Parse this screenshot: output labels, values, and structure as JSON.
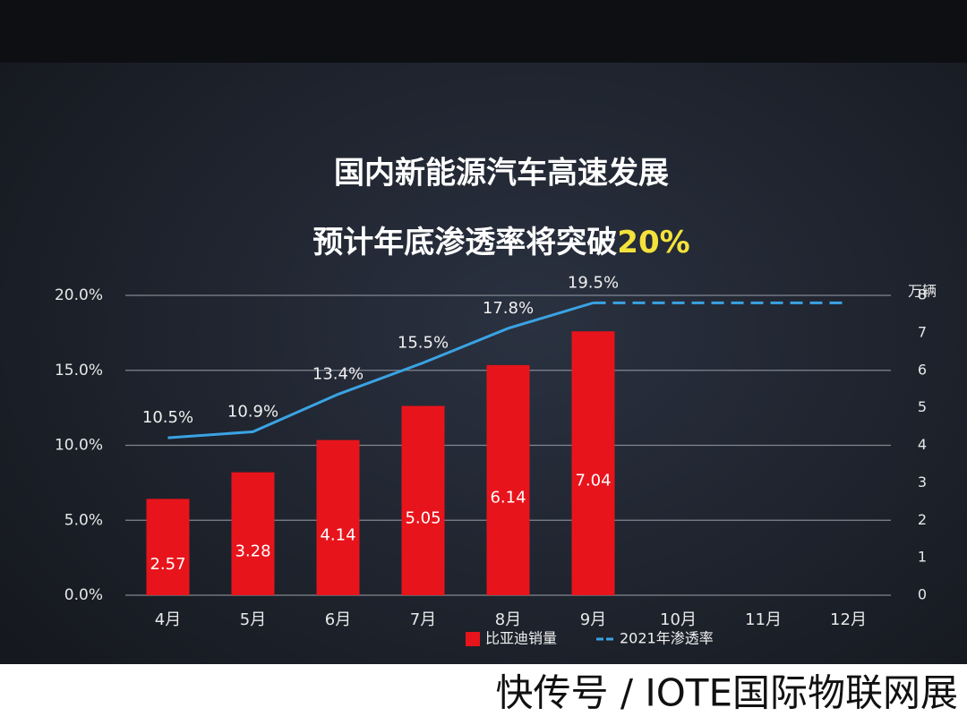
{
  "chart_data": {
    "type": "bar_line",
    "title": "国内新能源汽车高速发展",
    "subtitle": "预计年底渗透率将突破",
    "subtitle_highlight": "20%",
    "categories": [
      "4月",
      "5月",
      "6月",
      "7月",
      "8月",
      "9月",
      "10月",
      "11月",
      "12月"
    ],
    "series": [
      {
        "name": "比亚迪销量",
        "type": "bar",
        "axis": "y2",
        "color": "#e8141c",
        "values": [
          2.57,
          3.28,
          4.14,
          5.05,
          6.14,
          7.04,
          null,
          null,
          null
        ]
      },
      {
        "name": "2021年渗透率",
        "type": "line",
        "axis": "y",
        "color": "#3aa3e3",
        "dashed_from": 5,
        "values": [
          10.5,
          10.9,
          13.4,
          15.5,
          17.8,
          19.5,
          19.5,
          19.5,
          19.5
        ],
        "value_labels": [
          "10.5%",
          "10.9%",
          "13.4%",
          "15.5%",
          "17.8%",
          "19.5%",
          null,
          null,
          null
        ]
      }
    ],
    "ylim": [
      0,
      20
    ],
    "yticks": [
      {
        "value": 0,
        "label": "0.0%"
      },
      {
        "value": 5,
        "label": "5.0%"
      },
      {
        "value": 10,
        "label": "10.0%"
      },
      {
        "value": 15,
        "label": "15.0%"
      },
      {
        "value": 20,
        "label": "20.0%"
      }
    ],
    "y2_label": "万辆",
    "y2lim": [
      0,
      8
    ],
    "y2ticks": [
      0,
      1,
      2,
      3,
      4,
      5,
      6,
      7,
      8
    ],
    "grid": true
  },
  "watermark": "快传号 / IOTE国际物联网展"
}
